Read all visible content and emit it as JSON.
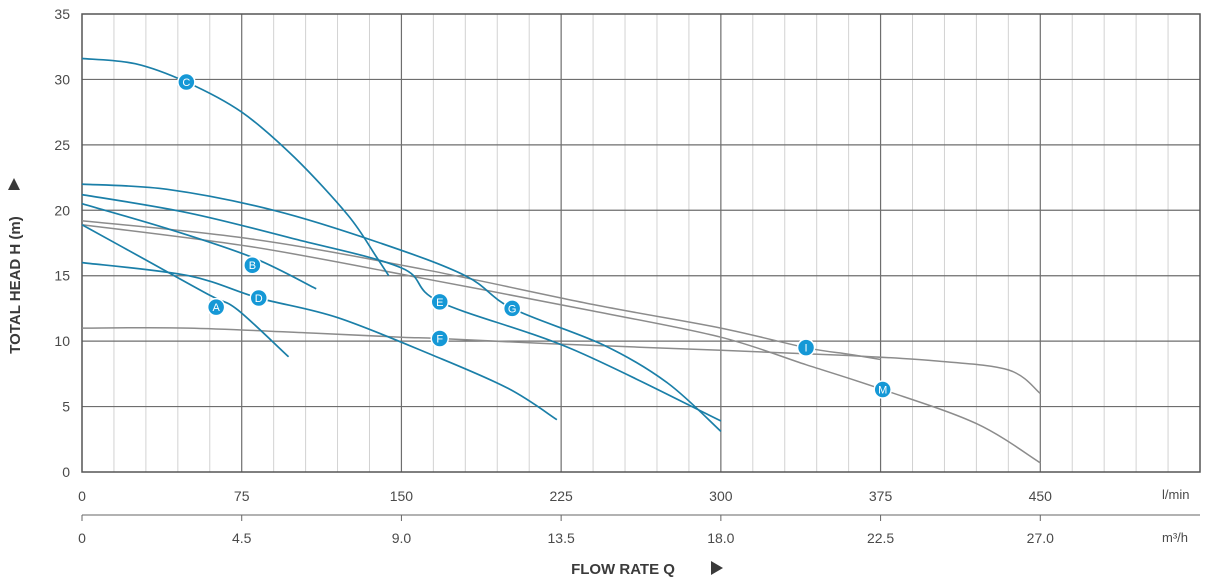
{
  "chart_data": {
    "type": "line",
    "xlabel": "FLOW RATE Q",
    "ylabel": "TOTAL HEAD H (m)",
    "x_unit_primary": "l/min",
    "x_unit_secondary": "m³/h",
    "xlim": [
      0,
      525
    ],
    "ylim": [
      0,
      35
    ],
    "x_ticks_primary": [
      "0",
      "75",
      "150",
      "225",
      "300",
      "375",
      "450"
    ],
    "x_ticks_secondary": [
      "0",
      "4.5",
      "9.0",
      "13.5",
      "18.0",
      "22.5",
      "27.0"
    ],
    "y_ticks": [
      "0",
      "5",
      "10",
      "15",
      "20",
      "25",
      "30",
      "35"
    ],
    "grid": true,
    "colors": {
      "blue": "#1a7fa8",
      "gray": "#8c8c8c",
      "marker": "#1598d6"
    },
    "series": [
      {
        "name": "A",
        "color": "blue",
        "points": [
          [
            0,
            18.9
          ],
          [
            30,
            16.2
          ],
          [
            60,
            13.5
          ],
          [
            73,
            12.4
          ],
          [
            97,
            8.8
          ]
        ],
        "marker": [
          63,
          12.6
        ]
      },
      {
        "name": "B",
        "color": "blue",
        "points": [
          [
            0,
            20.5
          ],
          [
            40,
            18.6
          ],
          [
            80,
            16.4
          ],
          [
            110,
            14.0
          ]
        ],
        "marker": [
          80,
          15.8
        ]
      },
      {
        "name": "C",
        "color": "blue",
        "points": [
          [
            0,
            31.6
          ],
          [
            25,
            31.2
          ],
          [
            49,
            29.8
          ],
          [
            75,
            27.5
          ],
          [
            100,
            24.0
          ],
          [
            125,
            19.6
          ],
          [
            138,
            16.5
          ],
          [
            144,
            15.0
          ]
        ],
        "marker": [
          49,
          29.8
        ]
      },
      {
        "name": "D",
        "color": "blue",
        "points": [
          [
            0,
            16.0
          ],
          [
            50,
            15.0
          ],
          [
            83,
            13.3
          ],
          [
            120,
            11.8
          ],
          [
            165,
            8.9
          ],
          [
            200,
            6.4
          ],
          [
            223,
            4.0
          ]
        ],
        "marker": [
          83,
          13.3
        ]
      },
      {
        "name": "E",
        "color": "blue",
        "points": [
          [
            0,
            21.2
          ],
          [
            50,
            19.8
          ],
          [
            100,
            17.8
          ],
          [
            150,
            15.6
          ],
          [
            168,
            13.0
          ],
          [
            230,
            9.4
          ],
          [
            300,
            3.9
          ]
        ],
        "marker": [
          168,
          13.0
        ]
      },
      {
        "name": "F",
        "color": "gray",
        "points": [
          [
            0,
            11.0
          ],
          [
            50,
            11.0
          ],
          [
            110,
            10.6
          ],
          [
            150,
            10.3
          ],
          [
            168,
            10.2
          ],
          [
            220,
            9.8
          ],
          [
            300,
            9.3
          ],
          [
            360,
            8.9
          ],
          [
            400,
            8.5
          ],
          [
            435,
            7.8
          ],
          [
            450,
            6.0
          ]
        ],
        "marker": [
          168,
          10.2
        ]
      },
      {
        "name": "G",
        "color": "blue",
        "points": [
          [
            0,
            22.0
          ],
          [
            40,
            21.6
          ],
          [
            90,
            20.0
          ],
          [
            140,
            17.5
          ],
          [
            180,
            15.0
          ],
          [
            202,
            12.5
          ],
          [
            245,
            9.7
          ],
          [
            275,
            6.8
          ],
          [
            300,
            3.1
          ]
        ],
        "marker": [
          202,
          12.5
        ]
      },
      {
        "name": "I",
        "color": "gray",
        "points": [
          [
            0,
            19.2
          ],
          [
            80,
            17.8
          ],
          [
            160,
            15.5
          ],
          [
            240,
            12.8
          ],
          [
            300,
            11.0
          ],
          [
            340,
            9.5
          ],
          [
            360,
            9.0
          ],
          [
            375,
            8.6
          ]
        ],
        "marker": [
          340,
          9.5
        ]
      },
      {
        "name": "M",
        "color": "gray",
        "points": [
          [
            0,
            18.9
          ],
          [
            80,
            17.2
          ],
          [
            160,
            14.8
          ],
          [
            240,
            12.3
          ],
          [
            300,
            10.3
          ],
          [
            340,
            8.2
          ],
          [
            376,
            6.3
          ],
          [
            420,
            3.7
          ],
          [
            450,
            0.7
          ]
        ],
        "marker": [
          376,
          6.3
        ]
      }
    ]
  }
}
